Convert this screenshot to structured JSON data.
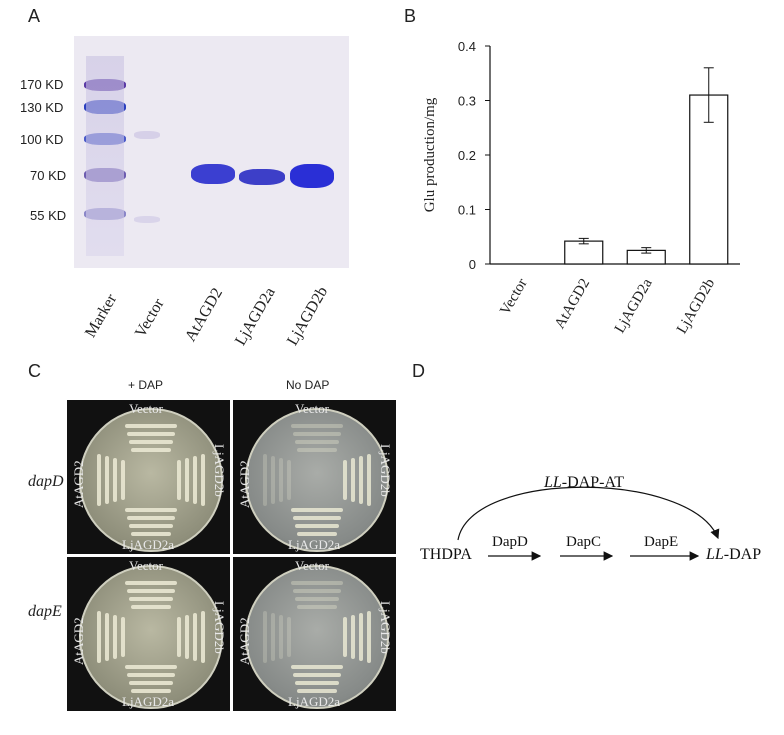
{
  "panels": {
    "a": "A",
    "b": "B",
    "c": "C",
    "d": "D"
  },
  "gel": {
    "markers": [
      "170 KD",
      "130 KD",
      "100 KD",
      "70 KD",
      "55 KD"
    ],
    "lanes": [
      "Marker",
      "Vector",
      "AtAGD2",
      "LjAGD2a",
      "LjAGD2b"
    ]
  },
  "chart_data": {
    "type": "bar",
    "ylabel": "Glu production/mg",
    "categories": [
      "Vector",
      "AtAGD2",
      "LjAGD2a",
      "LjAGD2b"
    ],
    "values": [
      0,
      0.042,
      0.025,
      0.31
    ],
    "errors": [
      0,
      0.005,
      0.005,
      0.05
    ],
    "ylim": [
      0,
      0.4
    ],
    "yticks": [
      "0",
      "0.1",
      "0.2",
      "0.3",
      "0.4"
    ],
    "grid": false
  },
  "complementation": {
    "col_headers": [
      "+ DAP",
      "No DAP"
    ],
    "row_labels": [
      "dapD",
      "dapE"
    ],
    "plate_labels": {
      "top": "Vector",
      "left": "AtAGD2",
      "right": "LjAGD2b",
      "bottom": "LjAGD2a"
    }
  },
  "pathway": {
    "substrate": "THDPA",
    "steps": [
      "DapD",
      "DapC",
      "DapE"
    ],
    "product_prefix": "LL",
    "product_suffix": "-DAP",
    "bypass_prefix": "LL",
    "bypass_suffix": "-DAP-AT"
  }
}
